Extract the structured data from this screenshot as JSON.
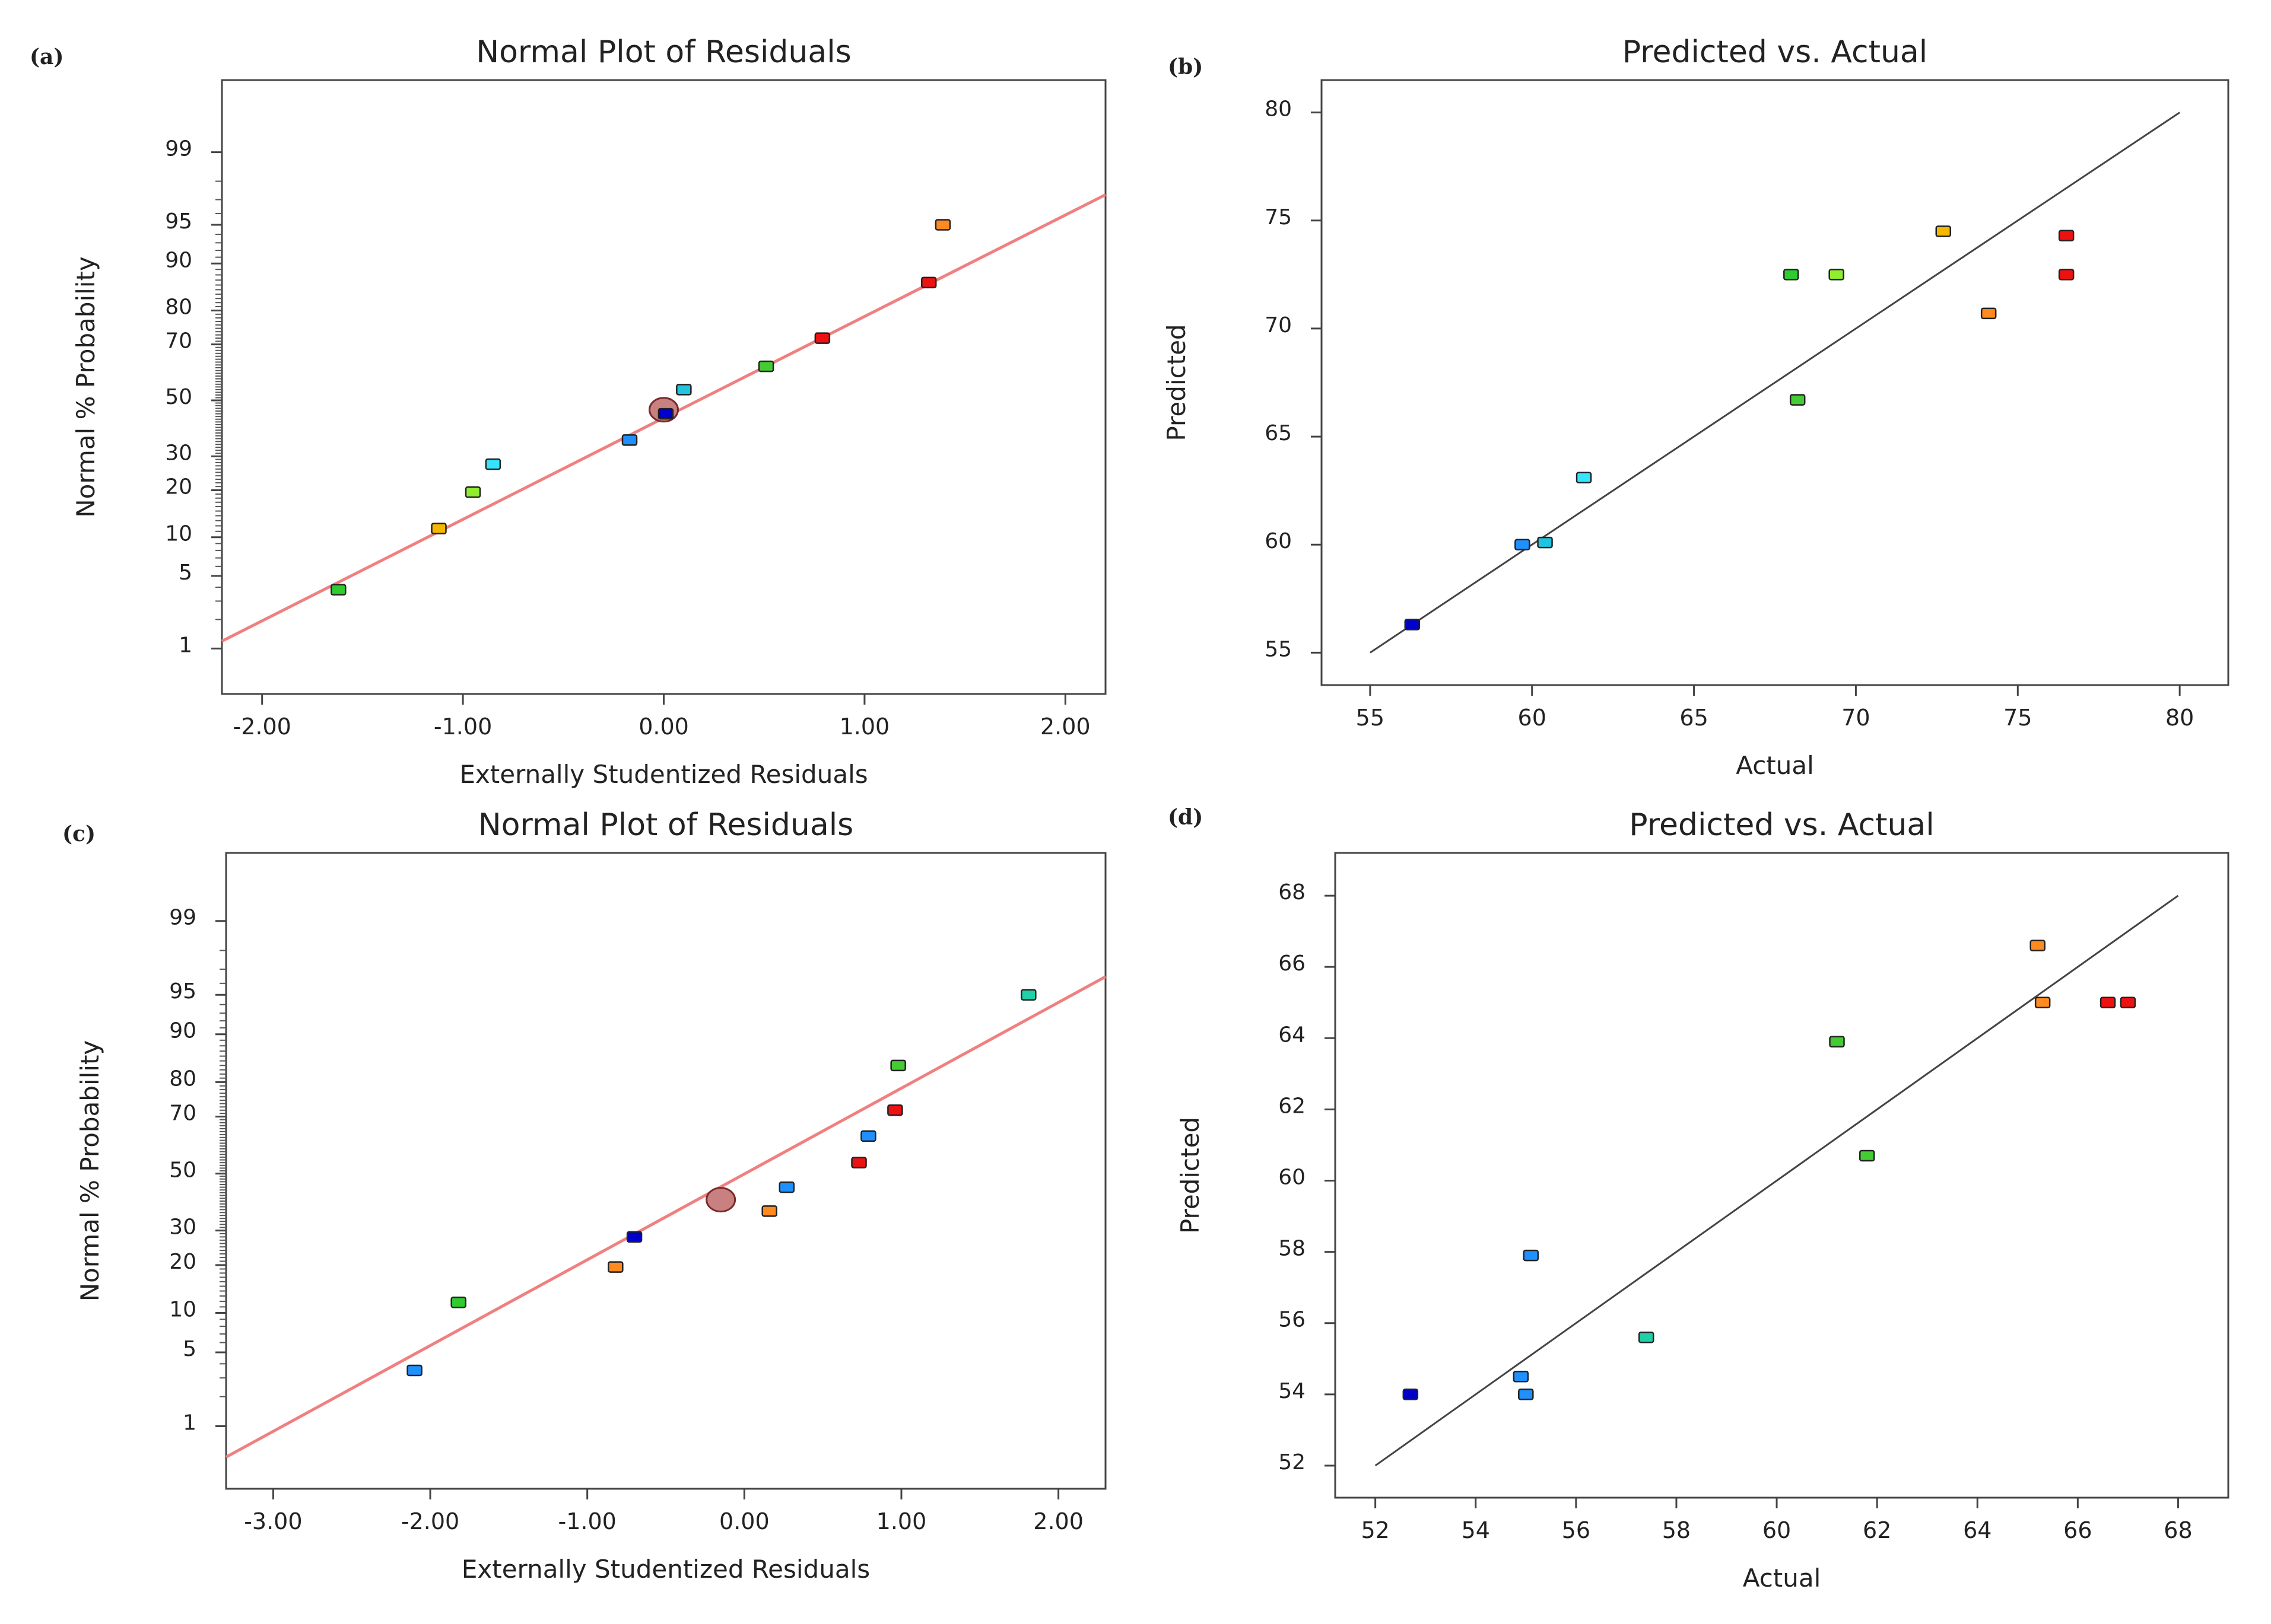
{
  "chart_data": [
    {
      "id": "a",
      "panel_label": "(a)",
      "type": "scatter",
      "subtype": "normal-probability",
      "title": "Normal Plot of Residuals",
      "xlabel": "Externally Studentized Residuals",
      "ylabel": "Normal % Probability",
      "xlim": [
        -2.2,
        2.2
      ],
      "xticks": [
        -2,
        -1,
        0,
        1,
        2
      ],
      "xtick_labels": [
        "-2.00",
        "-1.00",
        "0.00",
        "1.00",
        "2.00"
      ],
      "yticks": [
        1,
        5,
        10,
        20,
        30,
        50,
        70,
        80,
        90,
        95,
        99
      ],
      "ytick_labels": [
        "1",
        "5",
        "10",
        "20",
        "30",
        "50",
        "70",
        "80",
        "90",
        "95",
        "99"
      ],
      "reference_line": {
        "color": "#f08080",
        "x1": -2.2,
        "p1": 1.2,
        "x2": 2.2,
        "p2": 97.3
      },
      "points": [
        {
          "x": -1.62,
          "p": 3.8,
          "color": "#2ecc2e"
        },
        {
          "x": -1.12,
          "p": 11.5,
          "color": "#f5b800"
        },
        {
          "x": -0.95,
          "p": 19.5,
          "color": "#90ee30"
        },
        {
          "x": -0.85,
          "p": 27.5,
          "color": "#33e5ff"
        },
        {
          "x": -0.17,
          "p": 35.5,
          "color": "#1e90ff"
        },
        {
          "x": 0.01,
          "p": 45.0,
          "color": "#0000cc"
        },
        {
          "x": 0.1,
          "p": 54.0,
          "color": "#20c4e0"
        },
        {
          "x": 0.51,
          "p": 62.5,
          "color": "#44cc33"
        },
        {
          "x": 0.79,
          "p": 72.0,
          "color": "#ee1111"
        },
        {
          "x": 1.32,
          "p": 86.5,
          "color": "#ee1111"
        },
        {
          "x": 1.39,
          "p": 95.0,
          "color": "#ff8a20"
        }
      ],
      "highlight_point": {
        "x": 0.0,
        "p": 46.5,
        "color": "#c98080"
      }
    },
    {
      "id": "b",
      "panel_label": "(b)",
      "type": "scatter",
      "title": "Predicted vs. Actual",
      "xlabel": "Actual",
      "ylabel": "Predicted",
      "xlim": [
        53.5,
        81.5
      ],
      "ylim": [
        53.5,
        81.5
      ],
      "xticks": [
        55,
        60,
        65,
        70,
        75,
        80
      ],
      "xtick_labels": [
        "55",
        "60",
        "65",
        "70",
        "75",
        "80"
      ],
      "yticks": [
        55,
        60,
        65,
        70,
        75,
        80
      ],
      "ytick_labels": [
        "55",
        "60",
        "65",
        "70",
        "75",
        "80"
      ],
      "reference_line": {
        "color": "#444444",
        "x1": 55,
        "y1": 55,
        "x2": 80,
        "y2": 80
      },
      "points": [
        {
          "x": 56.3,
          "y": 56.3,
          "color": "#0000cc"
        },
        {
          "x": 59.7,
          "y": 60.0,
          "color": "#1e90ff"
        },
        {
          "x": 60.4,
          "y": 60.1,
          "color": "#20c4e0"
        },
        {
          "x": 61.6,
          "y": 63.1,
          "color": "#33e5ff"
        },
        {
          "x": 68.0,
          "y": 72.5,
          "color": "#2ecc2e"
        },
        {
          "x": 68.2,
          "y": 66.7,
          "color": "#44cc33"
        },
        {
          "x": 69.4,
          "y": 72.5,
          "color": "#90ee30"
        },
        {
          "x": 72.7,
          "y": 74.5,
          "color": "#f5b800"
        },
        {
          "x": 74.1,
          "y": 70.7,
          "color": "#ff8a20"
        },
        {
          "x": 76.5,
          "y": 74.3,
          "color": "#ee1111"
        },
        {
          "x": 76.5,
          "y": 72.5,
          "color": "#ee1111"
        }
      ]
    },
    {
      "id": "c",
      "panel_label": "(c)",
      "type": "scatter",
      "subtype": "normal-probability",
      "title": "Normal Plot of Residuals",
      "xlabel": "Externally Studentized Residuals",
      "ylabel": "Normal % Probability",
      "xlim": [
        -3.3,
        2.3
      ],
      "xticks": [
        -3,
        -2,
        -1,
        0,
        1,
        2
      ],
      "xtick_labels": [
        "-3.00",
        "-2.00",
        "-1.00",
        "0.00",
        "1.00",
        "2.00"
      ],
      "yticks": [
        1,
        5,
        10,
        20,
        30,
        50,
        70,
        80,
        90,
        95,
        99
      ],
      "ytick_labels": [
        "1",
        "5",
        "10",
        "20",
        "30",
        "50",
        "70",
        "80",
        "90",
        "95",
        "99"
      ],
      "reference_line": {
        "color": "#f08080",
        "x1": -3.3,
        "p1": 0.45,
        "x2": 2.3,
        "p2": 96.5
      },
      "points": [
        {
          "x": -2.1,
          "p": 3.5,
          "color": "#1e90ff"
        },
        {
          "x": -1.82,
          "p": 11.8,
          "color": "#2ecc2e"
        },
        {
          "x": -0.82,
          "p": 19.5,
          "color": "#ff8a20"
        },
        {
          "x": -0.7,
          "p": 28.0,
          "color": "#0000cc"
        },
        {
          "x": 0.16,
          "p": 36.5,
          "color": "#ff8a20"
        },
        {
          "x": 0.27,
          "p": 45.0,
          "color": "#1e90ff"
        },
        {
          "x": 0.73,
          "p": 54.0,
          "color": "#ee1111"
        },
        {
          "x": 0.79,
          "p": 63.5,
          "color": "#1e90ff"
        },
        {
          "x": 0.96,
          "p": 72.0,
          "color": "#ee1111"
        },
        {
          "x": 0.98,
          "p": 84.0,
          "color": "#44cc33"
        },
        {
          "x": 1.81,
          "p": 95.0,
          "color": "#20d0a8"
        }
      ],
      "highlight_point": {
        "x": -0.15,
        "p": 40.5,
        "color": "#c98080"
      }
    },
    {
      "id": "d",
      "panel_label": "(d)",
      "type": "scatter",
      "title": "Predicted vs. Actual",
      "xlabel": "Actual",
      "ylabel": "Predicted",
      "xlim": [
        51.2,
        69.0
      ],
      "ylim": [
        51.1,
        69.2
      ],
      "xticks": [
        52,
        54,
        56,
        58,
        60,
        62,
        64,
        66,
        68
      ],
      "xtick_labels": [
        "52",
        "54",
        "56",
        "58",
        "60",
        "62",
        "64",
        "66",
        "68"
      ],
      "yticks": [
        52,
        54,
        56,
        58,
        60,
        62,
        64,
        66,
        68
      ],
      "ytick_labels": [
        "52",
        "54",
        "56",
        "58",
        "60",
        "62",
        "64",
        "66",
        "68"
      ],
      "reference_line": {
        "color": "#444444",
        "x1": 52,
        "y1": 52,
        "x2": 68,
        "y2": 68
      },
      "points": [
        {
          "x": 52.7,
          "y": 54.0,
          "color": "#0000cc"
        },
        {
          "x": 54.9,
          "y": 54.5,
          "color": "#1e90ff"
        },
        {
          "x": 55.0,
          "y": 54.0,
          "color": "#1e90ff"
        },
        {
          "x": 55.1,
          "y": 57.9,
          "color": "#1e90ff"
        },
        {
          "x": 57.4,
          "y": 55.6,
          "color": "#20d0a8"
        },
        {
          "x": 61.2,
          "y": 63.9,
          "color": "#44cc33"
        },
        {
          "x": 61.8,
          "y": 60.7,
          "color": "#44cc33"
        },
        {
          "x": 65.2,
          "y": 66.6,
          "color": "#ff8a20"
        },
        {
          "x": 65.3,
          "y": 65.0,
          "color": "#ff8a20"
        },
        {
          "x": 66.6,
          "y": 65.0,
          "color": "#ee1111"
        },
        {
          "x": 67.0,
          "y": 65.0,
          "color": "#ee1111"
        }
      ]
    }
  ]
}
